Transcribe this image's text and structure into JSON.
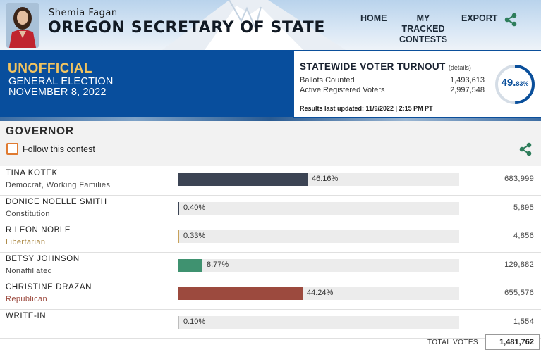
{
  "header": {
    "official_name": "Shemia Fagan",
    "office_title": "OREGON SECRETARY OF STATE",
    "nav": {
      "home": "HOME",
      "tracked_line1": "MY TRACKED",
      "tracked_line2": "CONTESTS",
      "export": "EXPORT"
    }
  },
  "banner": {
    "status": "UNOFFICIAL",
    "election_line1": "GENERAL ELECTION",
    "election_line2": "NOVEMBER 8, 2022"
  },
  "turnout": {
    "title": "STATEWIDE VOTER TURNOUT",
    "details_link": "(details)",
    "ballots_label": "Ballots Counted",
    "ballots_value": "1,493,613",
    "registered_label": "Active Registered Voters",
    "registered_value": "2,997,548",
    "updated": "Results last updated: 11/9/2022 | 2:15 PM PT",
    "percent_whole": "49.",
    "percent_frac": "83%",
    "percent_value": 49.83
  },
  "contest": {
    "title": "GOVERNOR",
    "follow_label": "Follow this contest",
    "candidates": [
      {
        "name": "TINA KOTEK",
        "party": "Democrat, Working Families",
        "pct_label": "46.16%",
        "pct": 46.16,
        "votes": "683,999",
        "color": "#3c4454",
        "party_color": "#444444"
      },
      {
        "name": "DONICE NOELLE SMITH",
        "party": "Constitution",
        "pct_label": "0.40%",
        "pct": 0.4,
        "votes": "5,895",
        "color": "#3c4454",
        "party_color": "#444444"
      },
      {
        "name": "R LEON NOBLE",
        "party": "Libertarian",
        "pct_label": "0.33%",
        "pct": 0.33,
        "votes": "4,856",
        "color": "#c8a25a",
        "party_color": "#a8843e"
      },
      {
        "name": "BETSY JOHNSON",
        "party": "Nonaffiliated",
        "pct_label": "8.77%",
        "pct": 8.77,
        "votes": "129,882",
        "color": "#3f9270",
        "party_color": "#444444"
      },
      {
        "name": "CHRISTINE DRAZAN",
        "party": "Republican",
        "pct_label": "44.24%",
        "pct": 44.24,
        "votes": "655,576",
        "color": "#9c4a3e",
        "party_color": "#9c4a3e"
      },
      {
        "name": "WRITE-IN",
        "party": "",
        "pct_label": "0.10%",
        "pct": 0.1,
        "votes": "1,554",
        "color": "#bdbdbd",
        "party_color": "#444444"
      }
    ],
    "total_label": "TOTAL VOTES",
    "total_votes": "1,481,762"
  },
  "icons": {
    "share": "share-icon",
    "checkbox": "checkbox-icon"
  },
  "colors": {
    "brand_blue": "#084e9d",
    "unofficial_gold": "#f2c460",
    "follow_orange": "#e07b31",
    "share_green": "#2e7d5b"
  }
}
